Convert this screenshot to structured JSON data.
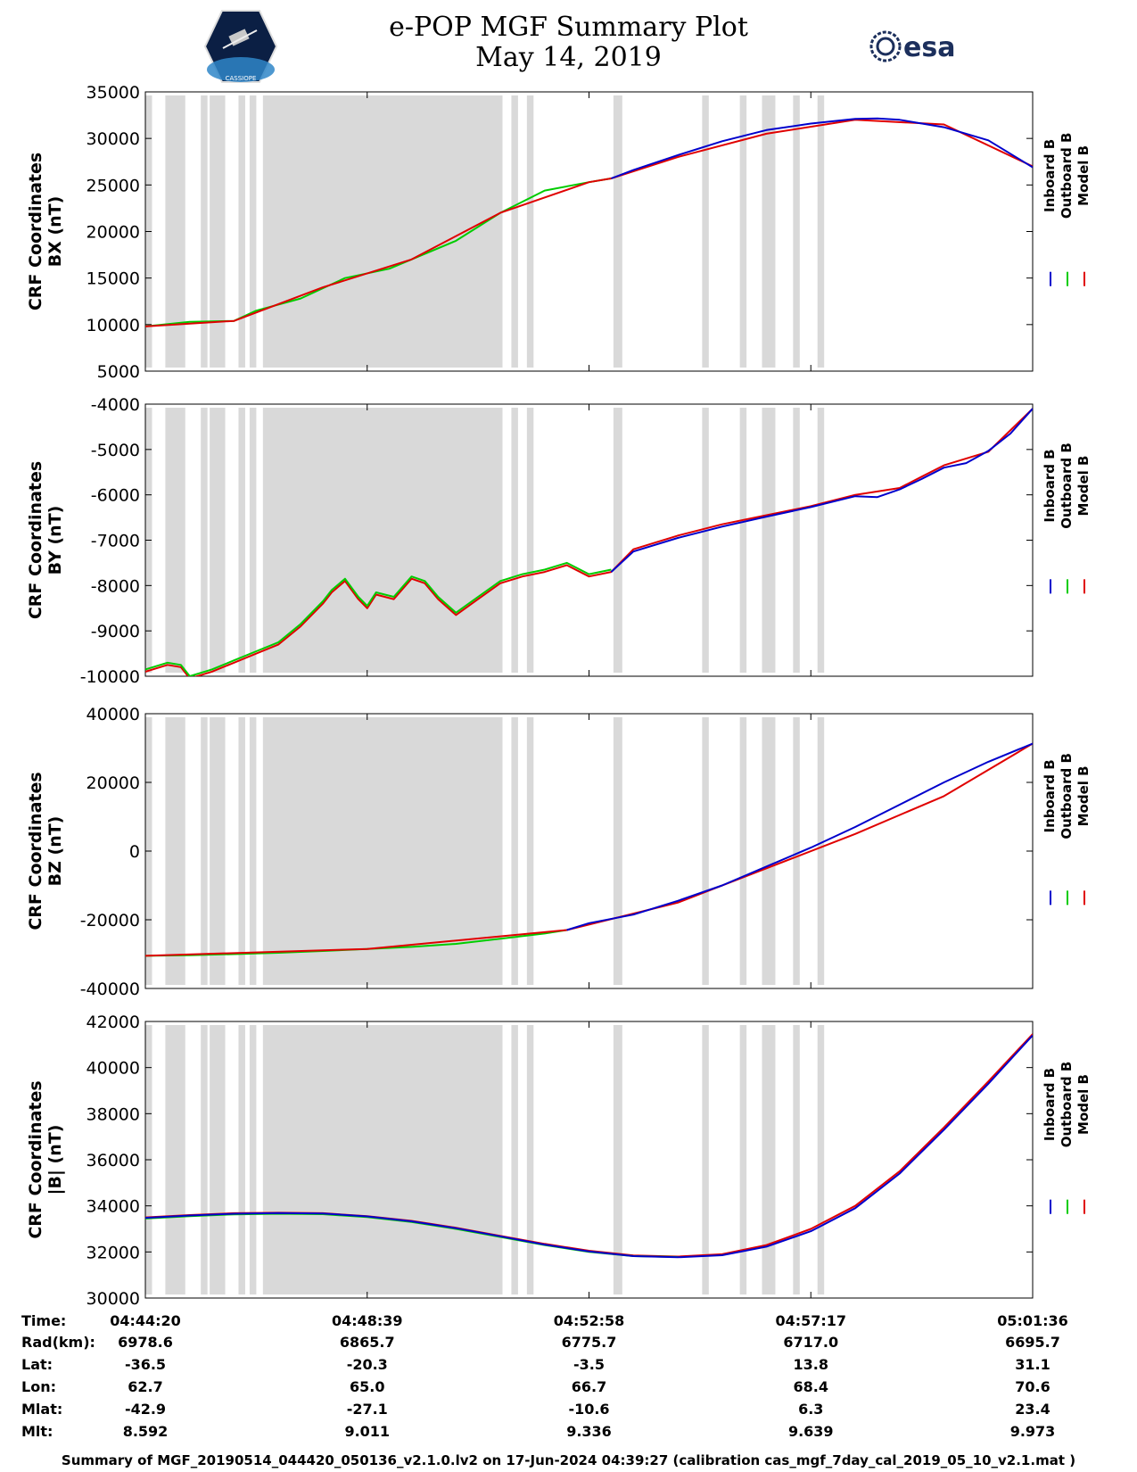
{
  "header": {
    "title_line1": "e-POP MGF Summary Plot",
    "title_line2": "May 14, 2019",
    "mission_logo_text": "CASSIOPE",
    "esa_logo_text": "esa"
  },
  "colors": {
    "inboard": "#0000cc",
    "outboard": "#00cc00",
    "model": "#e00000",
    "shade": "#d9d9d9"
  },
  "chart_data": [
    {
      "type": "line",
      "ylabel1": "CRF Coordinates",
      "ylabel2": "BX (nT)",
      "ylim": [
        5000,
        35000
      ],
      "yticks": [
        5000,
        10000,
        15000,
        20000,
        25000,
        30000,
        35000
      ],
      "legend": [
        "Inboard B",
        "Outboard B",
        "Model B"
      ],
      "series": [
        {
          "name": "Outboard B",
          "key": "outboard",
          "x": [
            0,
            1,
            2,
            2.5,
            3.5,
            4.5,
            5.5,
            6,
            7,
            8,
            9,
            10,
            10.5
          ],
          "values": [
            9800,
            10300,
            10400,
            11500,
            12800,
            15000,
            16000,
            17000,
            19000,
            22000,
            24400,
            25300,
            25700
          ]
        },
        {
          "name": "Model B",
          "key": "model",
          "x": [
            0,
            2,
            4,
            6,
            8,
            10,
            10.5,
            12,
            14,
            16,
            18,
            20
          ],
          "values": [
            9800,
            10400,
            14000,
            17000,
            22000,
            25300,
            25700,
            28000,
            30500,
            32000,
            31500,
            27000
          ]
        },
        {
          "name": "Inboard B",
          "key": "inboard",
          "x": [
            10.5,
            11,
            12,
            13,
            14,
            15,
            16,
            16.5,
            17,
            18,
            19,
            20
          ],
          "values": [
            25700,
            26600,
            28200,
            29700,
            30900,
            31600,
            32100,
            32150,
            32000,
            31200,
            29800,
            26900
          ]
        }
      ]
    },
    {
      "type": "line",
      "ylabel1": "CRF Coordinates",
      "ylabel2": "BY (nT)",
      "ylim": [
        -10000,
        -4000
      ],
      "yticks": [
        -10000,
        -9000,
        -8000,
        -7000,
        -6000,
        -5000,
        -4000
      ],
      "legend": [
        "Inboard B",
        "Outboard B",
        "Model B"
      ],
      "series": [
        {
          "name": "Model B",
          "key": "model",
          "x": [
            0,
            0.5,
            0.8,
            1,
            1.5,
            2,
            2.5,
            3,
            3.5,
            4,
            4.2,
            4.5,
            4.8,
            5,
            5.2,
            5.6,
            6,
            6.3,
            6.6,
            7,
            7.5,
            8,
            8.5,
            9,
            9.5,
            10,
            10.5,
            11,
            12,
            13,
            14,
            15,
            16,
            17,
            17.5,
            18,
            19,
            20
          ],
          "values": [
            -9900,
            -9750,
            -9800,
            -10050,
            -9900,
            -9700,
            -9500,
            -9300,
            -8900,
            -8400,
            -8150,
            -7900,
            -8300,
            -8500,
            -8200,
            -8300,
            -7850,
            -7950,
            -8300,
            -8650,
            -8300,
            -7950,
            -7800,
            -7700,
            -7550,
            -7800,
            -7700,
            -7200,
            -6900,
            -6650,
            -6450,
            -6250,
            -6000,
            -5850,
            -5600,
            -5350,
            -5050,
            -4100
          ]
        },
        {
          "name": "Outboard B",
          "key": "outboard",
          "x": [
            0,
            0.5,
            0.8,
            1,
            1.5,
            2,
            2.5,
            3,
            3.5,
            4,
            4.2,
            4.5,
            4.8,
            5,
            5.2,
            5.6,
            6,
            6.3,
            6.6,
            7,
            7.5,
            8,
            8.5,
            9,
            9.5,
            10,
            10.5
          ],
          "values": [
            -9850,
            -9700,
            -9750,
            -10000,
            -9850,
            -9650,
            -9450,
            -9250,
            -8850,
            -8350,
            -8100,
            -7850,
            -8250,
            -8450,
            -8150,
            -8250,
            -7800,
            -7900,
            -8250,
            -8600,
            -8250,
            -7900,
            -7750,
            -7650,
            -7500,
            -7750,
            -7650
          ]
        },
        {
          "name": "Inboard B",
          "key": "inboard",
          "x": [
            10.5,
            11,
            12,
            13,
            14,
            15,
            16,
            16.5,
            17,
            17.5,
            18,
            18.5,
            19,
            19.5,
            20
          ],
          "values": [
            -7700,
            -7250,
            -6950,
            -6700,
            -6480,
            -6270,
            -6030,
            -6050,
            -5880,
            -5650,
            -5400,
            -5300,
            -5030,
            -4650,
            -4100
          ]
        }
      ]
    },
    {
      "type": "line",
      "ylabel1": "CRF Coordinates",
      "ylabel2": "BZ (nT)",
      "ylim": [
        -40000,
        40000
      ],
      "yticks": [
        -40000,
        -20000,
        0,
        20000,
        40000
      ],
      "legend": [
        "Inboard B",
        "Outboard B",
        "Model B"
      ],
      "series": [
        {
          "name": "Outboard B",
          "key": "outboard",
          "x": [
            0,
            1,
            2,
            3,
            4,
            5,
            6,
            7,
            8,
            9,
            9.5
          ],
          "values": [
            -30500,
            -30300,
            -30000,
            -29600,
            -29100,
            -28500,
            -27900,
            -27000,
            -25500,
            -24000,
            -23000
          ]
        },
        {
          "name": "Model B",
          "key": "model",
          "x": [
            0,
            5,
            9.5,
            12,
            14,
            16,
            18,
            20
          ],
          "values": [
            -30500,
            -28500,
            -23000,
            -15000,
            -5000,
            5000,
            16000,
            31300
          ]
        },
        {
          "name": "Inboard B",
          "key": "inboard",
          "x": [
            9.5,
            10,
            11,
            12,
            13,
            14,
            15,
            16,
            17,
            18,
            19,
            20
          ],
          "values": [
            -23000,
            -21000,
            -18500,
            -14500,
            -10000,
            -4500,
            1000,
            7000,
            13500,
            20000,
            26000,
            31300
          ]
        }
      ]
    },
    {
      "type": "line",
      "ylabel1": "CRF Coordinates",
      "ylabel2": "|B| (nT)",
      "ylim": [
        30000,
        42000
      ],
      "yticks": [
        30000,
        32000,
        34000,
        36000,
        38000,
        40000,
        42000
      ],
      "legend": [
        "Inboard B",
        "Outboard B",
        "Model B"
      ],
      "series": [
        {
          "name": "Model B",
          "key": "model",
          "x": [
            0,
            1,
            2,
            3,
            4,
            5,
            6,
            7,
            8,
            9,
            10,
            11,
            12,
            13,
            14,
            15,
            16,
            17,
            18,
            19,
            20
          ],
          "values": [
            33500,
            33600,
            33680,
            33700,
            33680,
            33550,
            33350,
            33050,
            32700,
            32350,
            32050,
            31850,
            31800,
            31900,
            32300,
            33000,
            34000,
            35500,
            37400,
            39400,
            41450
          ]
        },
        {
          "name": "Outboard B",
          "key": "outboard",
          "x": [
            0,
            1,
            2,
            3,
            4,
            5,
            6,
            7,
            8,
            9,
            10,
            11,
            12
          ],
          "values": [
            33450,
            33550,
            33630,
            33660,
            33640,
            33510,
            33300,
            33000,
            32650,
            32300,
            32000,
            31820,
            31780
          ]
        },
        {
          "name": "Inboard B",
          "key": "inboard",
          "x": [
            0,
            1,
            2,
            3,
            4,
            5,
            6,
            7,
            8,
            9,
            10,
            11,
            12,
            13,
            14,
            15,
            16,
            17,
            18,
            19,
            20
          ],
          "values": [
            33480,
            33580,
            33660,
            33690,
            33670,
            33540,
            33330,
            33030,
            32680,
            32320,
            32020,
            31820,
            31770,
            31860,
            32230,
            32900,
            33900,
            35400,
            37300,
            39300,
            41400
          ]
        }
      ]
    }
  ],
  "xaxis": {
    "range": [
      0,
      20
    ],
    "ticks": [
      0,
      5,
      10,
      15,
      20
    ],
    "shaded_intervals": [
      [
        0,
        0.15
      ],
      [
        0.45,
        0.9
      ],
      [
        1.25,
        1.4
      ],
      [
        1.45,
        1.8
      ],
      [
        2.1,
        2.25
      ],
      [
        2.35,
        2.5
      ],
      [
        2.65,
        8.05
      ],
      [
        8.25,
        8.4
      ],
      [
        8.6,
        8.75
      ],
      [
        10.55,
        10.75
      ],
      [
        12.55,
        12.7
      ],
      [
        13.4,
        13.55
      ],
      [
        13.9,
        14.2
      ],
      [
        14.6,
        14.75
      ],
      [
        15.15,
        15.3
      ]
    ]
  },
  "ephemeris": {
    "labels": [
      "Time:",
      "Rad(km):",
      "Lat:",
      "Lon:",
      "Mlat:",
      "Mlt:"
    ],
    "columns": [
      [
        "04:44:20",
        "6978.6",
        "-36.5",
        "62.7",
        "-42.9",
        "8.592"
      ],
      [
        "04:48:39",
        "6865.7",
        "-20.3",
        "65.0",
        "-27.1",
        "9.011"
      ],
      [
        "04:52:58",
        "6775.7",
        "-3.5",
        "66.7",
        "-10.6",
        "9.336"
      ],
      [
        "04:57:17",
        "6717.0",
        "13.8",
        "68.4",
        "6.3",
        "9.639"
      ],
      [
        "05:01:36",
        "6695.7",
        "31.1",
        "70.6",
        "23.4",
        "9.973"
      ]
    ]
  },
  "footer": {
    "text": "Summary of MGF_20190514_044420_050136_v2.1.0.lv2 on 17-Jun-2024 04:39:27 (calibration cas_mgf_7day_cal_2019_05_10_v2.1.mat )"
  }
}
